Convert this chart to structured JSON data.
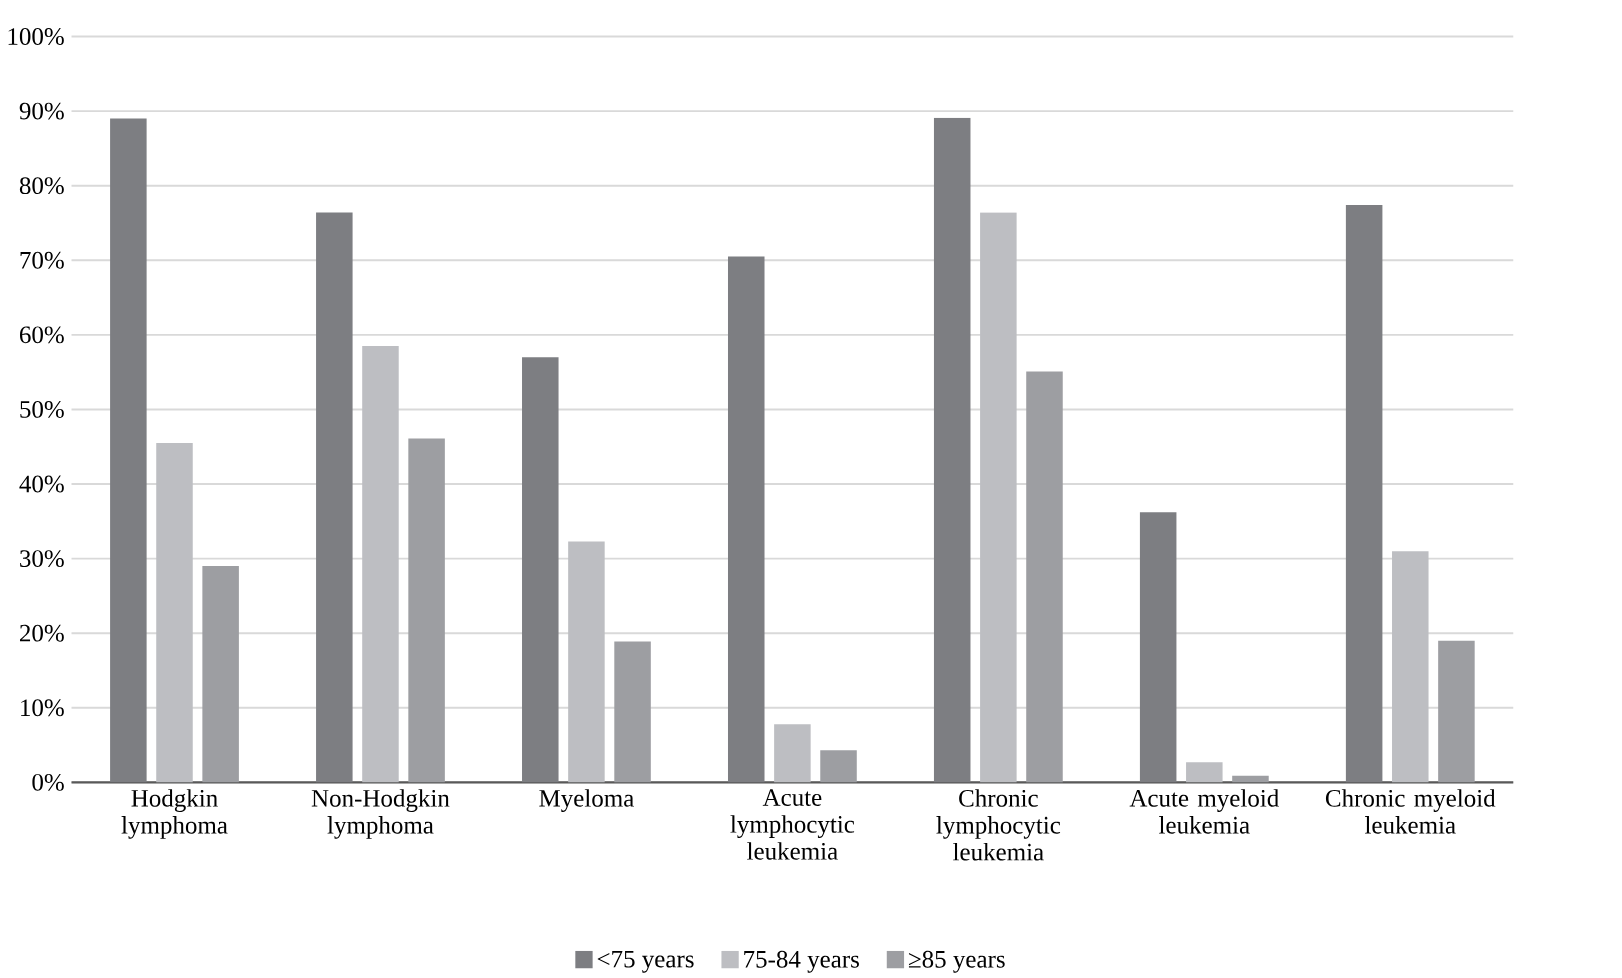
{
  "chart_data": {
    "type": "bar",
    "categories": [
      "Hodgkin lymphoma",
      "Non-Hodgkin lymphoma",
      "Myeloma",
      "Acute lymphocytic leukemia",
      "Chronic lymphocytic leukemia",
      "Acute myeloid leukemia",
      "Chronic myeloid leukemia"
    ],
    "series": [
      {
        "name": "<75 years",
        "color": "#7d7e82",
        "values": [
          89.0,
          76.4,
          57.0,
          70.5,
          89.1,
          36.2,
          77.4
        ]
      },
      {
        "name": "75-84 years",
        "color": "#bdbec2",
        "values": [
          45.5,
          58.5,
          32.3,
          7.8,
          76.4,
          2.7,
          31.0
        ]
      },
      {
        "name": "≥85 years",
        "color": "#9d9ea2",
        "values": [
          29.0,
          46.1,
          18.9,
          4.3,
          55.1,
          0.9,
          19.0
        ]
      }
    ],
    "ylim": [
      0,
      100
    ],
    "yticks": [
      {
        "value": 0,
        "label": "0%"
      },
      {
        "value": 10,
        "label": "10%"
      },
      {
        "value": 20,
        "label": "20%"
      },
      {
        "value": 30,
        "label": "30%"
      },
      {
        "value": 40,
        "label": "40%"
      },
      {
        "value": 50,
        "label": "50%"
      },
      {
        "value": 60,
        "label": "60%"
      },
      {
        "value": 70,
        "label": "70%"
      },
      {
        "value": 80,
        "label": "80%"
      },
      {
        "value": 90,
        "label": "90%"
      },
      {
        "value": 100,
        "label": "100%"
      }
    ],
    "grid": "y",
    "legend": "bottom"
  }
}
